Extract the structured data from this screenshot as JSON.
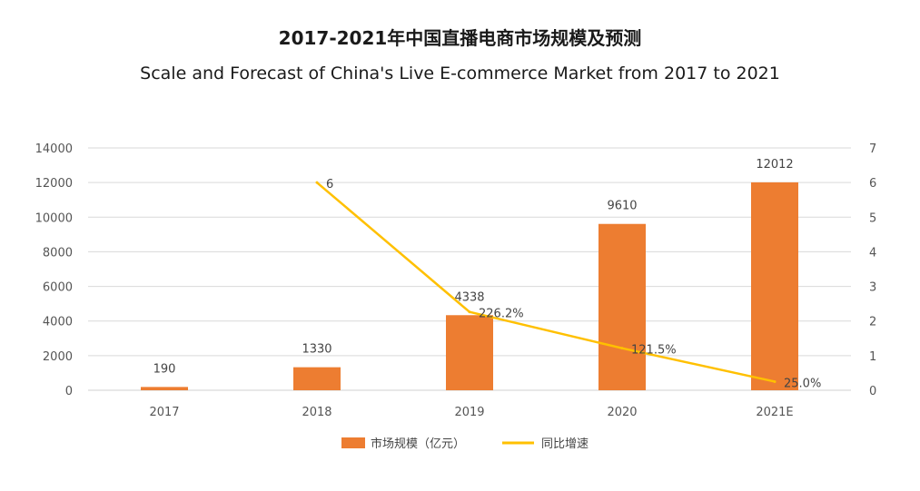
{
  "title": "2017-2021年中国直播电商市场规模及预测",
  "subtitle": "Scale and Forecast of China's Live E-commerce Market from 2017 to 2021",
  "colors": {
    "bar": "#ED7D31",
    "line": "#FFC000",
    "grid": "#D9D9D9"
  },
  "chart_data": {
    "type": "bar",
    "categories": [
      "2017",
      "2018",
      "2019",
      "2020",
      "2021E"
    ],
    "series": [
      {
        "name": "市场规模（亿元）",
        "type": "bar",
        "axis": "left",
        "values": [
          190,
          1330,
          4338,
          9610,
          12012
        ],
        "labels": [
          "190",
          "1330",
          "4338",
          "9610",
          "12012"
        ]
      },
      {
        "name": "同比增速",
        "type": "line",
        "axis": "right",
        "values": [
          null,
          6.0,
          2.262,
          1.215,
          0.25
        ],
        "labels": [
          "",
          "6",
          "226.2%",
          "121.5%",
          "25.0%"
        ]
      }
    ],
    "y_left": {
      "range": [
        0,
        14000
      ],
      "ticks": [
        "0",
        "2000",
        "4000",
        "6000",
        "8000",
        "10000",
        "12000",
        "14000"
      ]
    },
    "y_right": {
      "range": [
        0,
        7
      ],
      "ticks": [
        "0",
        "1",
        "2",
        "3",
        "4",
        "5",
        "6",
        "7"
      ]
    },
    "grid": true,
    "legend": "bottom"
  }
}
